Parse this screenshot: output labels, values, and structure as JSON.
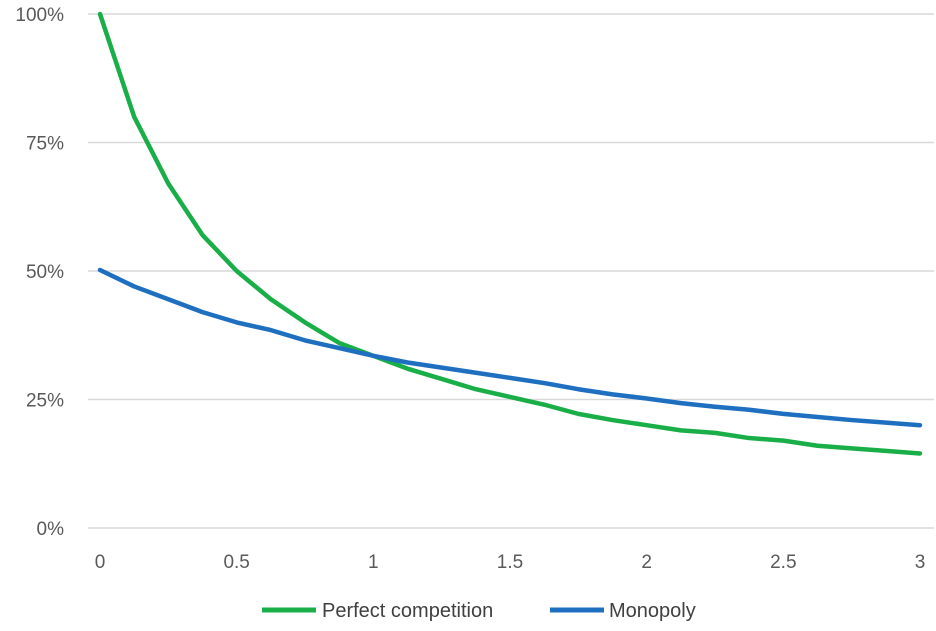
{
  "chart_data": {
    "type": "line",
    "x": [
      0,
      0.125,
      0.25,
      0.375,
      0.5,
      0.625,
      0.75,
      0.875,
      1,
      1.125,
      1.25,
      1.375,
      1.5,
      1.625,
      1.75,
      1.875,
      2,
      2.125,
      2.25,
      2.375,
      2.5,
      2.625,
      2.75,
      2.875,
      3
    ],
    "series": [
      {
        "name": "Perfect competition",
        "color": "#1aae48",
        "values": [
          100,
          80,
          67,
          57,
          50,
          44.5,
          40,
          36,
          33.5,
          31,
          29,
          27,
          25.5,
          24,
          22.2,
          21,
          20,
          19,
          18.5,
          17.5,
          17,
          16,
          15.5,
          15,
          14.5
        ]
      },
      {
        "name": "Monopoly",
        "color": "#1f6fc0",
        "values": [
          50.2,
          47,
          44.5,
          42,
          40,
          38.5,
          36.5,
          35,
          33.5,
          32.2,
          31.2,
          30.2,
          29.2,
          28.2,
          27,
          26,
          25.2,
          24.3,
          23.6,
          23,
          22.2,
          21.6,
          21,
          20.5,
          20
        ]
      }
    ],
    "xticks": [
      0,
      0.5,
      1,
      1.5,
      2,
      2.5,
      3
    ],
    "xtick_labels": [
      "0",
      "0.5",
      "1",
      "1.5",
      "2",
      "2.5",
      "3"
    ],
    "yticks": [
      0,
      25,
      50,
      75,
      100
    ],
    "ytick_labels": [
      "0%",
      "25%",
      "50%",
      "75%",
      "100%"
    ],
    "xlim": [
      0,
      3
    ],
    "ylim": [
      0,
      100
    ],
    "grid": "horizontal",
    "legend_position": "bottom",
    "title": "",
    "xlabel": "",
    "ylabel": ""
  }
}
